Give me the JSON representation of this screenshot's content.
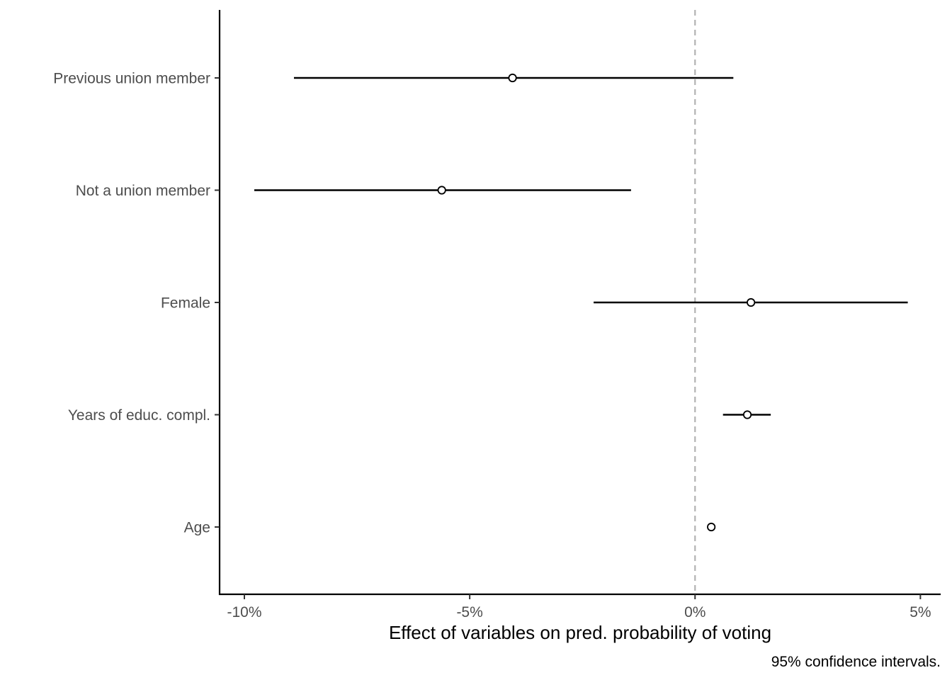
{
  "chart_data": {
    "type": "scatter",
    "subtype": "coefficient-plot-with-error-bars",
    "title": "",
    "xlabel": "Effect of variables on pred. probability of voting",
    "ylabel": "",
    "caption": "95% confidence intervals.",
    "xlim": [
      -10.55,
      5.45
    ],
    "x_ticks": [
      {
        "value": -10,
        "label": "-10%"
      },
      {
        "value": -5,
        "label": "-5%"
      },
      {
        "value": 0,
        "label": "0%"
      },
      {
        "value": 5,
        "label": "5%"
      }
    ],
    "reference_line": {
      "x": 0,
      "style": "dashed",
      "color": "#b3b3b3"
    },
    "grid": false,
    "legend": "none",
    "point_color": "#000000",
    "categories": [
      "Previous union member",
      "Not a union member",
      "Female",
      "Years of educ. compl.",
      "Age"
    ],
    "estimates": [
      {
        "label": "Previous union member",
        "estimate": -4.05,
        "lower": -8.9,
        "upper": 0.85
      },
      {
        "label": "Not a union member",
        "estimate": -5.62,
        "lower": -9.78,
        "upper": -1.42
      },
      {
        "label": "Female",
        "estimate": 1.24,
        "lower": -2.25,
        "upper": 4.72
      },
      {
        "label": "Years of educ. compl.",
        "estimate": 1.16,
        "lower": 0.62,
        "upper": 1.68
      },
      {
        "label": "Age",
        "estimate": 0.36,
        "lower": 0.3,
        "upper": 0.42
      }
    ]
  }
}
